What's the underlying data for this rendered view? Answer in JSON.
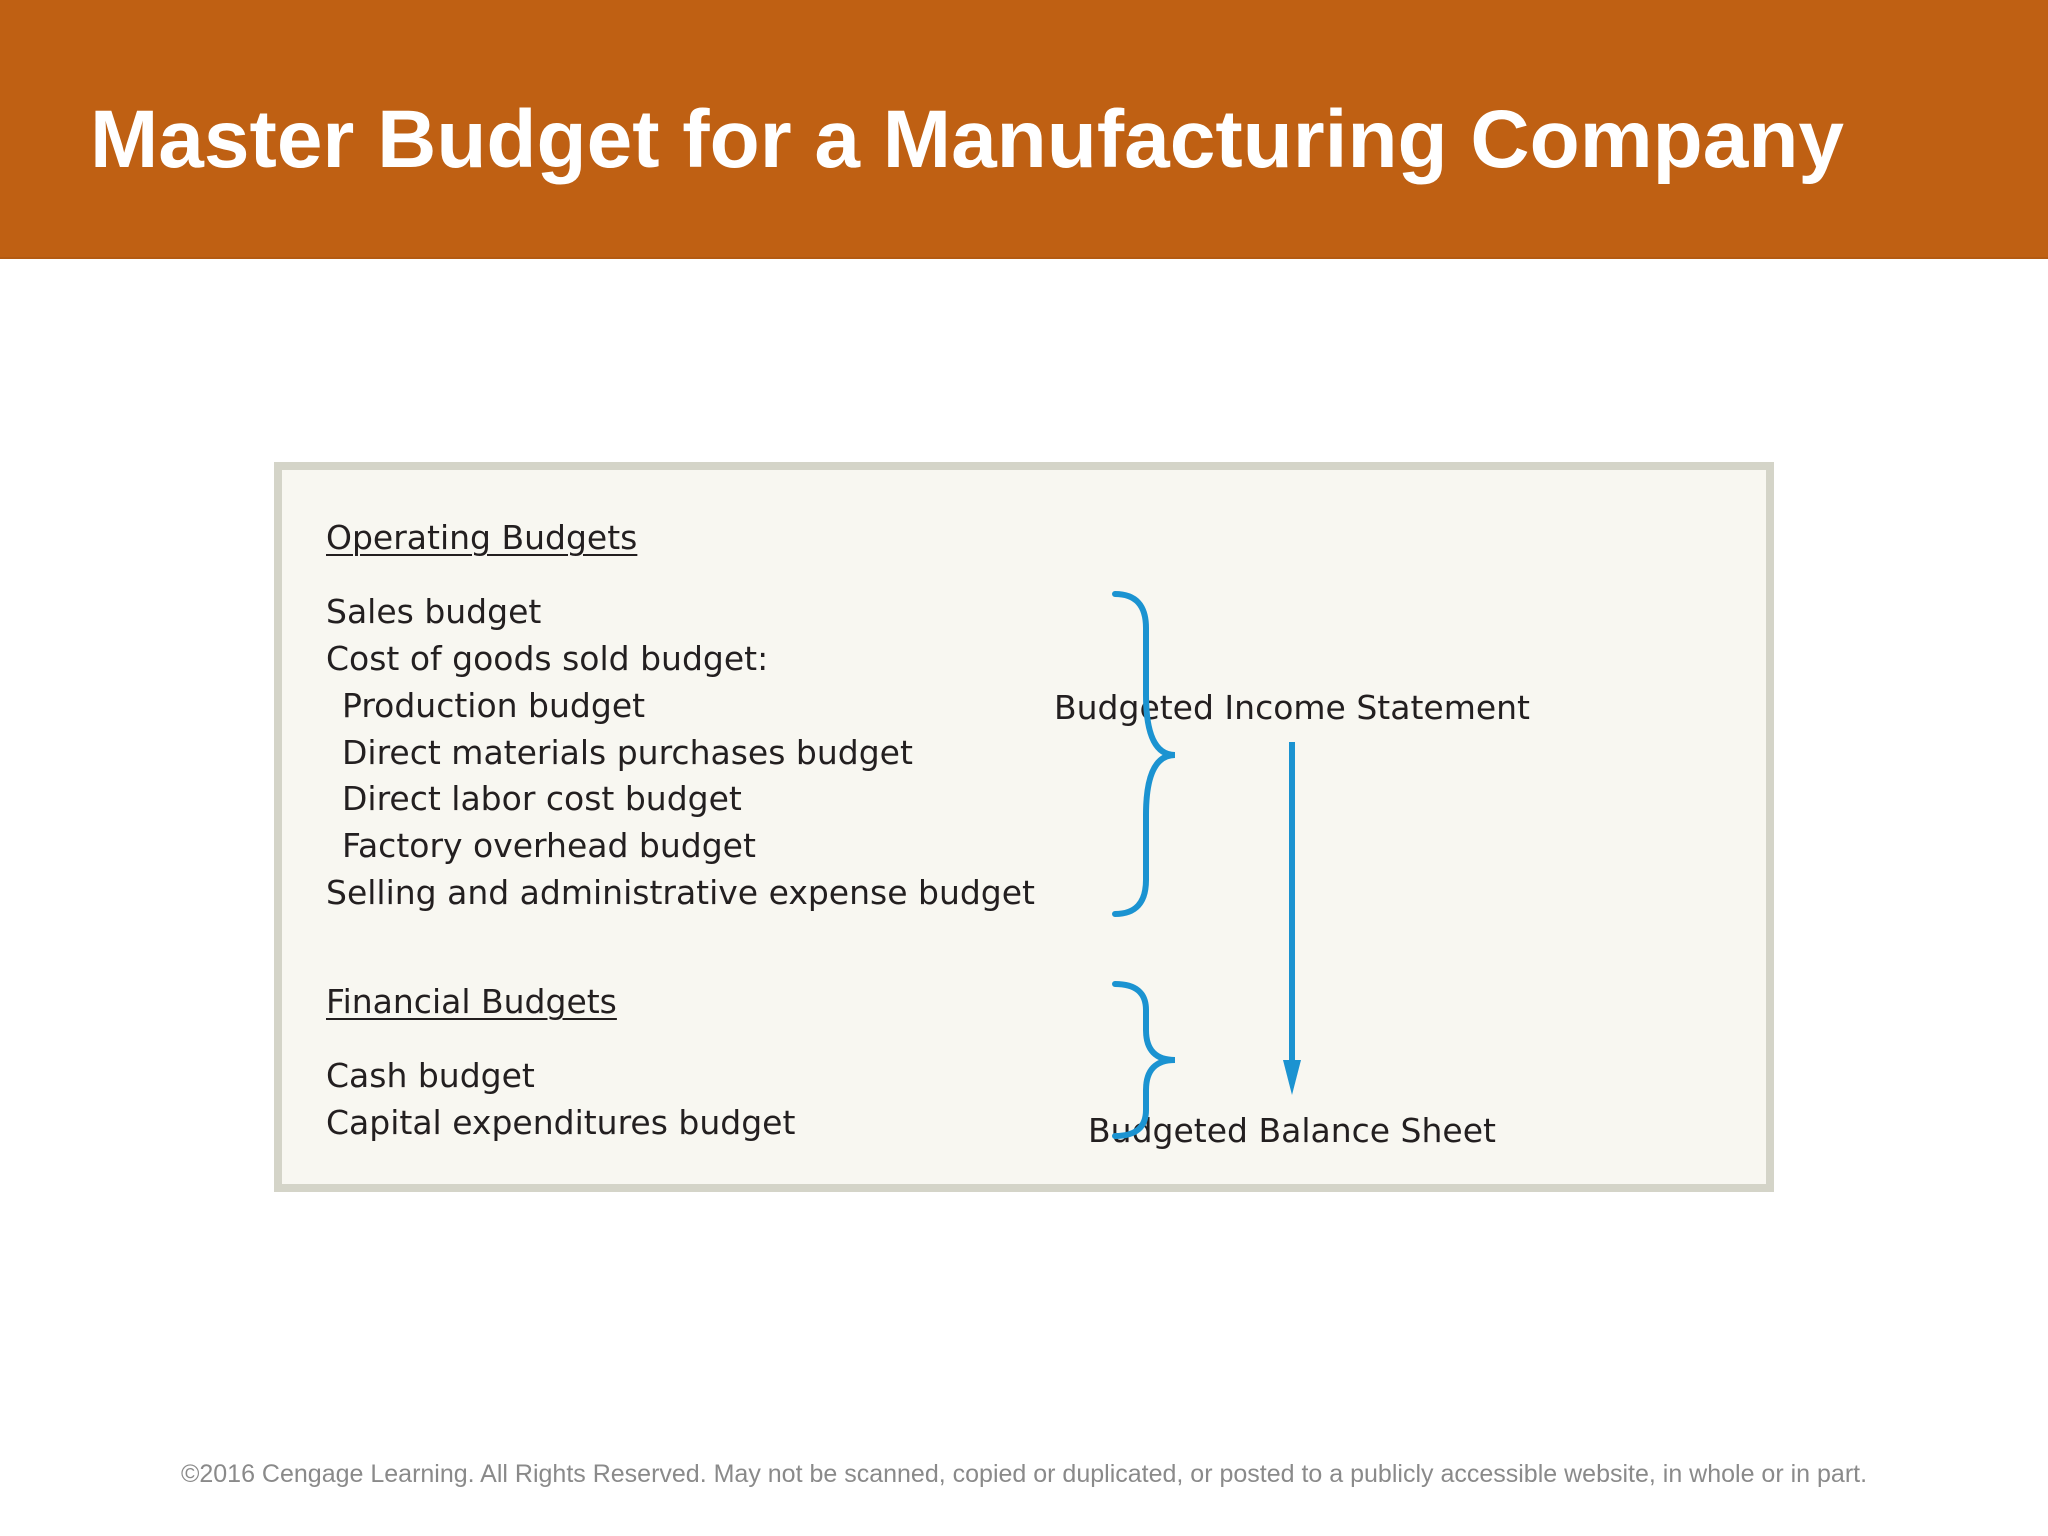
{
  "header": {
    "title": "Master Budget for a Manufacturing Company"
  },
  "diagram": {
    "operating": {
      "heading": "Operating Budgets",
      "items": [
        "Sales budget",
        "Cost of goods sold budget:",
        "Production budget",
        "Direct materials purchases budget",
        "Direct labor cost budget",
        "Factory overhead budget",
        "Selling and administrative expense budget"
      ]
    },
    "financial": {
      "heading": "Financial Budgets",
      "items": [
        "Cash budget",
        "Capital expenditures budget"
      ]
    },
    "outputs": {
      "income_statement": "Budgeted Income Statement",
      "balance_sheet": "Budgeted Balance Sheet"
    },
    "colors": {
      "brace": "#1b93d1",
      "arrow": "#1b93d1",
      "header": "#bf6013"
    }
  },
  "footer": {
    "copyright": "©2016 Cengage Learning. All Rights Reserved. May not be scanned, copied or duplicated, or posted to a publicly accessible website, in whole or in part."
  }
}
